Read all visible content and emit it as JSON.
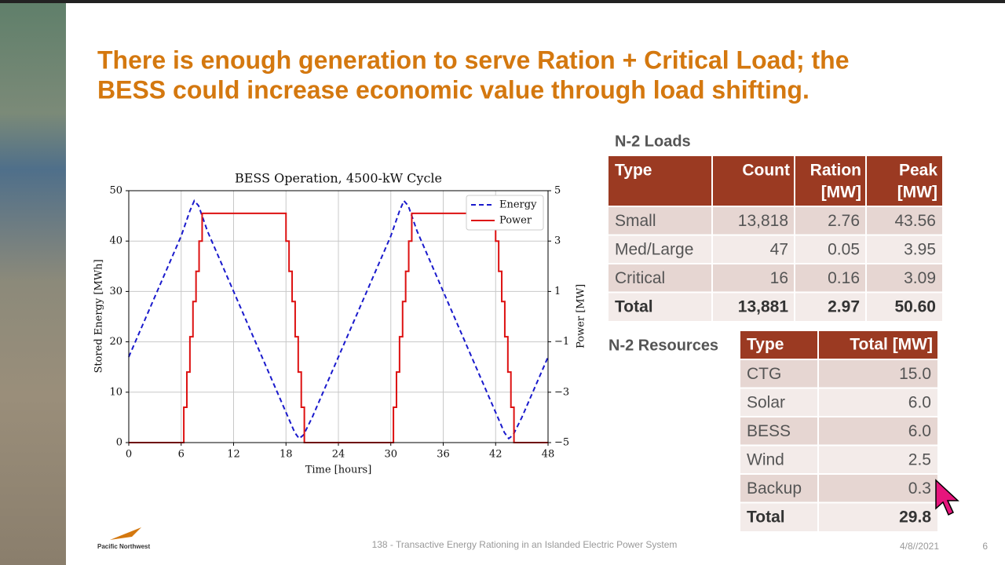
{
  "slide": {
    "title_lines": [
      "There is enough generation to serve Ration + Critical Load; the",
      "BESS could increase economic value through load shifting."
    ],
    "loads_table": {
      "caption": "N-2 Loads",
      "header": [
        "Type",
        "Count",
        "Ration",
        "[MW]",
        "Peak",
        "[MW]"
      ],
      "rows": [
        [
          "Small",
          "13,818",
          "2.76",
          "43.56"
        ],
        [
          "Med/Large",
          "47",
          "0.05",
          "3.95"
        ],
        [
          "Critical",
          "16",
          "0.16",
          "3.09"
        ],
        [
          "Total",
          "13,881",
          "2.97",
          "50.60"
        ]
      ]
    },
    "resources_table": {
      "caption": "N-2 Resources",
      "header": [
        "Type",
        "Total [MW]"
      ],
      "rows": [
        [
          "CTG",
          "15.0"
        ],
        [
          "Solar",
          "6.0"
        ],
        [
          "BESS",
          "6.0"
        ],
        [
          "Wind",
          "2.5"
        ],
        [
          "Backup",
          "0.3"
        ],
        [
          "Total",
          "29.8"
        ]
      ]
    },
    "footer": {
      "logo": "Pacific Northwest",
      "text": "138 - Transactive Energy Rationing in an Islanded Electric Power System",
      "date": "4/8//2021",
      "page": "6"
    }
  },
  "chart_data": {
    "type": "line",
    "title": "BESS Operation, 4500-kW Cycle",
    "x_label": "Time [hours]",
    "y_label": "Stored Energy [MWh]",
    "y2_label": "Power [MW]",
    "xlim": [
      0,
      48
    ],
    "xticks": [
      0,
      6,
      12,
      18,
      24,
      30,
      36,
      42,
      48
    ],
    "ylim": [
      0,
      50
    ],
    "yticks": [
      0,
      10,
      20,
      30,
      40,
      50
    ],
    "y2lim": [
      -5,
      5
    ],
    "y2ticks": [
      {
        "value": -5,
        "label": "−5"
      },
      {
        "value": -3,
        "label": "−3"
      },
      {
        "value": -1,
        "label": "−1"
      },
      1,
      3,
      5
    ],
    "grid": true,
    "legend": "upper right",
    "series": [
      {
        "name": "Energy",
        "color": "#1a1acc",
        "dash": true,
        "x": [
          0,
          2,
          4,
          6,
          7,
          7.5,
          8,
          9,
          11,
          13,
          15,
          17,
          18,
          19,
          19.5,
          20,
          21,
          23,
          25,
          27,
          29,
          30,
          31,
          31.5,
          32,
          33,
          35,
          37,
          39,
          41,
          42,
          43,
          43.5,
          44,
          45,
          47,
          48
        ],
        "values": [
          17,
          25,
          33,
          41,
          46,
          48,
          47,
          42,
          34,
          26,
          18,
          10,
          6,
          2,
          0.8,
          1.5,
          5,
          13,
          21,
          29,
          37,
          41,
          46,
          48,
          47,
          42,
          34,
          26,
          18,
          10,
          6,
          2,
          0.8,
          1.5,
          5,
          13,
          17
        ]
      },
      {
        "name": "Power",
        "color": "#dd1111",
        "axis": "y2",
        "x": [
          0,
          6.3,
          6.3,
          6.65,
          6.65,
          7,
          7,
          7.35,
          7.35,
          7.7,
          7.7,
          8.05,
          8.05,
          8.4,
          8.4,
          18,
          18,
          18.35,
          18.35,
          18.7,
          18.7,
          19.05,
          19.05,
          19.4,
          19.4,
          19.75,
          19.75,
          20.1,
          20.1,
          30.3,
          30.3,
          30.65,
          30.65,
          31,
          31,
          31.35,
          31.35,
          31.7,
          31.7,
          32.05,
          32.05,
          32.4,
          32.4,
          42,
          42,
          42.35,
          42.35,
          42.7,
          42.7,
          43.05,
          43.05,
          43.4,
          43.4,
          43.75,
          43.75,
          44.1,
          44.1,
          48
        ],
        "values": [
          -5,
          -5,
          -3.6,
          -3.6,
          -2.2,
          -2.2,
          -0.8,
          -0.8,
          0.6,
          0.6,
          1.8,
          1.8,
          3,
          3,
          4.1,
          4.1,
          3,
          3,
          1.8,
          1.8,
          0.6,
          0.6,
          -0.8,
          -0.8,
          -2.2,
          -2.2,
          -3.6,
          -3.6,
          -5,
          -5,
          -3.6,
          -3.6,
          -2.2,
          -2.2,
          -0.8,
          -0.8,
          0.6,
          0.6,
          1.8,
          1.8,
          3,
          3,
          4.1,
          4.1,
          3,
          3,
          1.8,
          1.8,
          0.6,
          0.6,
          -0.8,
          -0.8,
          -2.2,
          -2.2,
          -3.6,
          -3.6,
          -5,
          -5
        ]
      }
    ]
  }
}
